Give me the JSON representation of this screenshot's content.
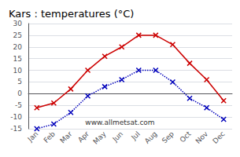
{
  "chart_data": {
    "type": "line",
    "title": "Kars : temperatures (°C)",
    "categories": [
      "Jan",
      "Feb",
      "Mar",
      "Apr",
      "May",
      "Jun",
      "Jul",
      "Aug",
      "Sep",
      "Oct",
      "Nov",
      "Dec"
    ],
    "series": [
      {
        "color": "#cc0000",
        "values": [
          -6,
          -4,
          2,
          10,
          16,
          20,
          25,
          25,
          21,
          13,
          6,
          -3
        ],
        "marker": "x",
        "line_style": "solid"
      },
      {
        "color": "#0000bb",
        "values": [
          -15,
          -13,
          -8,
          -1,
          3,
          6,
          10,
          10,
          5,
          -2,
          -6,
          -11
        ],
        "marker": "x",
        "line_style": "dotted"
      }
    ],
    "ylim": [
      -15,
      30
    ],
    "yticks": [
      -15,
      -10,
      -5,
      0,
      5,
      10,
      15,
      20,
      25,
      30
    ],
    "grid": true,
    "annotation": "www.allmetsat.com"
  }
}
